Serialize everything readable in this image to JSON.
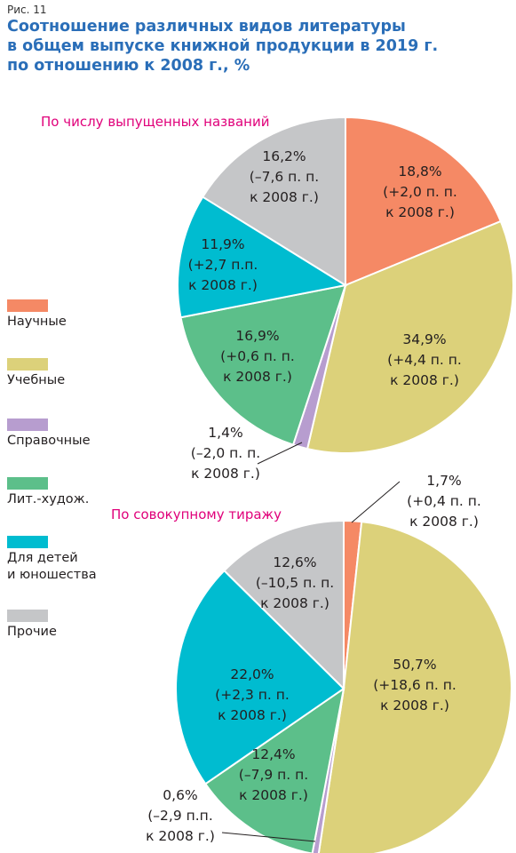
{
  "figure_label": "Рис. 11",
  "title_lines": [
    "Соотношение различных видов литературы",
    "в общем выпуске книжной продукции в 2019 г.",
    "по отношению к 2008 г., %"
  ],
  "legend": [
    {
      "label": "Научные",
      "color": "#f58965"
    },
    {
      "label": "Учебные",
      "color": "#dcd17a"
    },
    {
      "label": "Справочные",
      "color": "#b79dcf"
    },
    {
      "label": "Лит.-худож.",
      "color": "#5cbf8a"
    },
    {
      "label": "Для детей\nи юношества",
      "color": "#00bcd0"
    },
    {
      "label": "Прочие",
      "color": "#c5c6c8"
    }
  ],
  "chart_data": [
    {
      "type": "pie",
      "title": "По числу выпущенных названий",
      "categories": [
        "Научные",
        "Учебные",
        "Справочные",
        "Лит.-худож.",
        "Для детей и юношества",
        "Прочие"
      ],
      "values": [
        18.8,
        34.9,
        1.4,
        16.9,
        11.9,
        16.2
      ],
      "change_vs_2008": [
        2.0,
        4.4,
        -2.0,
        0.6,
        2.7,
        -7.6
      ],
      "labels": [
        [
          "18,8%",
          "(+2,0 п. п.",
          "к 2008 г.)"
        ],
        [
          "34,9%",
          "(+4,4 п. п.",
          "к 2008 г.)"
        ],
        [
          "1,4%",
          "(–2,0 п. п.",
          "к 2008 г.)"
        ],
        [
          "16,9%",
          "(+0,6 п. п.",
          "к 2008 г.)"
        ],
        [
          "11,9%",
          "(+2,7 п.п.",
          "к 2008 г.)"
        ],
        [
          "16,2%",
          "(–7,6 п. п.",
          "к 2008 г.)"
        ]
      ]
    },
    {
      "type": "pie",
      "title": "По совокупному  тиражу",
      "categories": [
        "Научные",
        "Учебные",
        "Справочные",
        "Лит.-худож.",
        "Для детей и юношества",
        "Прочие"
      ],
      "values": [
        1.7,
        50.7,
        0.6,
        12.4,
        22.0,
        12.6
      ],
      "change_vs_2008": [
        0.4,
        18.6,
        -2.9,
        -7.9,
        2.3,
        -10.5
      ],
      "labels": [
        [
          "1,7%",
          "(+0,4 п. п.",
          "к 2008 г.)"
        ],
        [
          "50,7%",
          "(+18,6 п. п.",
          "к 2008 г.)"
        ],
        [
          "0,6%",
          "(–2,9 п.п.",
          "к 2008 г.)"
        ],
        [
          "12,4%",
          "(–7,9 п. п.",
          "к 2008 г.)"
        ],
        [
          "22,0%",
          "(+2,3 п. п.",
          "к 2008 г.)"
        ],
        [
          "12,6%",
          "(–10,5 п. п.",
          "к 2008 г.)"
        ]
      ]
    }
  ]
}
